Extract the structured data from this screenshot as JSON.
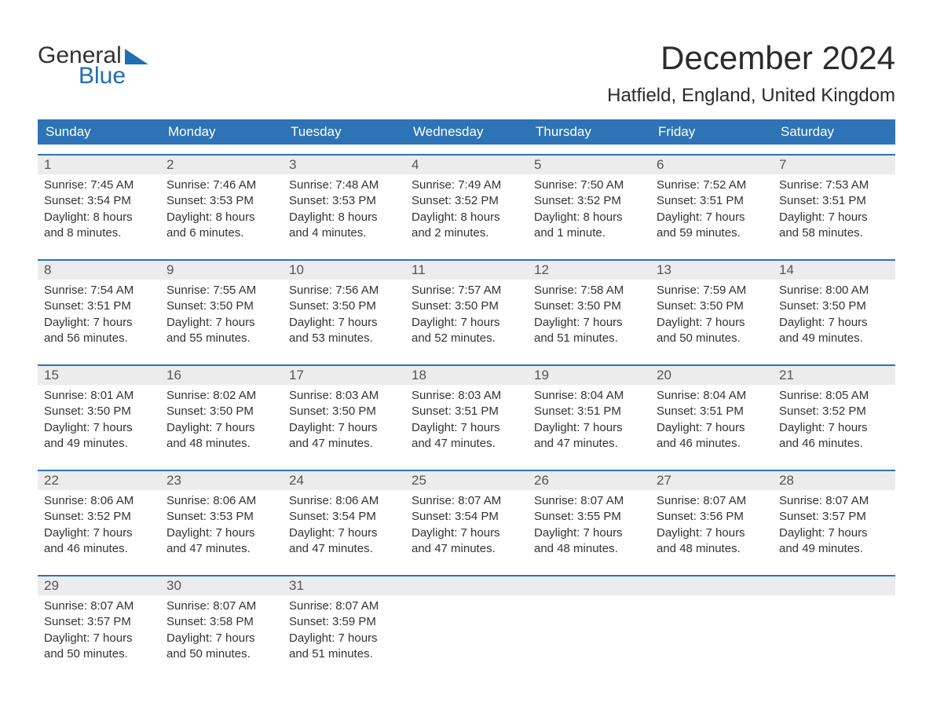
{
  "logo": {
    "text1": "General",
    "text2": "Blue"
  },
  "title": "December 2024",
  "location": "Hatfield, England, United Kingdom",
  "colors": {
    "header_bg": "#2d73b6",
    "header_text": "#ffffff",
    "week_top_border": "#2d73b6",
    "daynum_bg": "#ececec",
    "daynum_text": "#555555",
    "body_text": "#333333",
    "logo_blue": "#1f6db5",
    "page_bg": "#ffffff"
  },
  "typography": {
    "title_fontsize": 42,
    "location_fontsize": 24,
    "dow_fontsize": 17,
    "daynum_fontsize": 17,
    "body_fontsize": 15,
    "logo_fontsize": 30
  },
  "grid": {
    "columns": 7,
    "rows": 5
  },
  "dow": [
    "Sunday",
    "Monday",
    "Tuesday",
    "Wednesday",
    "Thursday",
    "Friday",
    "Saturday"
  ],
  "labels": {
    "sunrise": "Sunrise",
    "sunset": "Sunset",
    "daylight": "Daylight"
  },
  "days": [
    {
      "n": 1,
      "sunrise": "7:45 AM",
      "sunset": "3:54 PM",
      "dl1": "8 hours",
      "dl2": "and 8 minutes."
    },
    {
      "n": 2,
      "sunrise": "7:46 AM",
      "sunset": "3:53 PM",
      "dl1": "8 hours",
      "dl2": "and 6 minutes."
    },
    {
      "n": 3,
      "sunrise": "7:48 AM",
      "sunset": "3:53 PM",
      "dl1": "8 hours",
      "dl2": "and 4 minutes."
    },
    {
      "n": 4,
      "sunrise": "7:49 AM",
      "sunset": "3:52 PM",
      "dl1": "8 hours",
      "dl2": "and 2 minutes."
    },
    {
      "n": 5,
      "sunrise": "7:50 AM",
      "sunset": "3:52 PM",
      "dl1": "8 hours",
      "dl2": "and 1 minute."
    },
    {
      "n": 6,
      "sunrise": "7:52 AM",
      "sunset": "3:51 PM",
      "dl1": "7 hours",
      "dl2": "and 59 minutes."
    },
    {
      "n": 7,
      "sunrise": "7:53 AM",
      "sunset": "3:51 PM",
      "dl1": "7 hours",
      "dl2": "and 58 minutes."
    },
    {
      "n": 8,
      "sunrise": "7:54 AM",
      "sunset": "3:51 PM",
      "dl1": "7 hours",
      "dl2": "and 56 minutes."
    },
    {
      "n": 9,
      "sunrise": "7:55 AM",
      "sunset": "3:50 PM",
      "dl1": "7 hours",
      "dl2": "and 55 minutes."
    },
    {
      "n": 10,
      "sunrise": "7:56 AM",
      "sunset": "3:50 PM",
      "dl1": "7 hours",
      "dl2": "and 53 minutes."
    },
    {
      "n": 11,
      "sunrise": "7:57 AM",
      "sunset": "3:50 PM",
      "dl1": "7 hours",
      "dl2": "and 52 minutes."
    },
    {
      "n": 12,
      "sunrise": "7:58 AM",
      "sunset": "3:50 PM",
      "dl1": "7 hours",
      "dl2": "and 51 minutes."
    },
    {
      "n": 13,
      "sunrise": "7:59 AM",
      "sunset": "3:50 PM",
      "dl1": "7 hours",
      "dl2": "and 50 minutes."
    },
    {
      "n": 14,
      "sunrise": "8:00 AM",
      "sunset": "3:50 PM",
      "dl1": "7 hours",
      "dl2": "and 49 minutes."
    },
    {
      "n": 15,
      "sunrise": "8:01 AM",
      "sunset": "3:50 PM",
      "dl1": "7 hours",
      "dl2": "and 49 minutes."
    },
    {
      "n": 16,
      "sunrise": "8:02 AM",
      "sunset": "3:50 PM",
      "dl1": "7 hours",
      "dl2": "and 48 minutes."
    },
    {
      "n": 17,
      "sunrise": "8:03 AM",
      "sunset": "3:50 PM",
      "dl1": "7 hours",
      "dl2": "and 47 minutes."
    },
    {
      "n": 18,
      "sunrise": "8:03 AM",
      "sunset": "3:51 PM",
      "dl1": "7 hours",
      "dl2": "and 47 minutes."
    },
    {
      "n": 19,
      "sunrise": "8:04 AM",
      "sunset": "3:51 PM",
      "dl1": "7 hours",
      "dl2": "and 47 minutes."
    },
    {
      "n": 20,
      "sunrise": "8:04 AM",
      "sunset": "3:51 PM",
      "dl1": "7 hours",
      "dl2": "and 46 minutes."
    },
    {
      "n": 21,
      "sunrise": "8:05 AM",
      "sunset": "3:52 PM",
      "dl1": "7 hours",
      "dl2": "and 46 minutes."
    },
    {
      "n": 22,
      "sunrise": "8:06 AM",
      "sunset": "3:52 PM",
      "dl1": "7 hours",
      "dl2": "and 46 minutes."
    },
    {
      "n": 23,
      "sunrise": "8:06 AM",
      "sunset": "3:53 PM",
      "dl1": "7 hours",
      "dl2": "and 47 minutes."
    },
    {
      "n": 24,
      "sunrise": "8:06 AM",
      "sunset": "3:54 PM",
      "dl1": "7 hours",
      "dl2": "and 47 minutes."
    },
    {
      "n": 25,
      "sunrise": "8:07 AM",
      "sunset": "3:54 PM",
      "dl1": "7 hours",
      "dl2": "and 47 minutes."
    },
    {
      "n": 26,
      "sunrise": "8:07 AM",
      "sunset": "3:55 PM",
      "dl1": "7 hours",
      "dl2": "and 48 minutes."
    },
    {
      "n": 27,
      "sunrise": "8:07 AM",
      "sunset": "3:56 PM",
      "dl1": "7 hours",
      "dl2": "and 48 minutes."
    },
    {
      "n": 28,
      "sunrise": "8:07 AM",
      "sunset": "3:57 PM",
      "dl1": "7 hours",
      "dl2": "and 49 minutes."
    },
    {
      "n": 29,
      "sunrise": "8:07 AM",
      "sunset": "3:57 PM",
      "dl1": "7 hours",
      "dl2": "and 50 minutes."
    },
    {
      "n": 30,
      "sunrise": "8:07 AM",
      "sunset": "3:58 PM",
      "dl1": "7 hours",
      "dl2": "and 50 minutes."
    },
    {
      "n": 31,
      "sunrise": "8:07 AM",
      "sunset": "3:59 PM",
      "dl1": "7 hours",
      "dl2": "and 51 minutes."
    }
  ]
}
